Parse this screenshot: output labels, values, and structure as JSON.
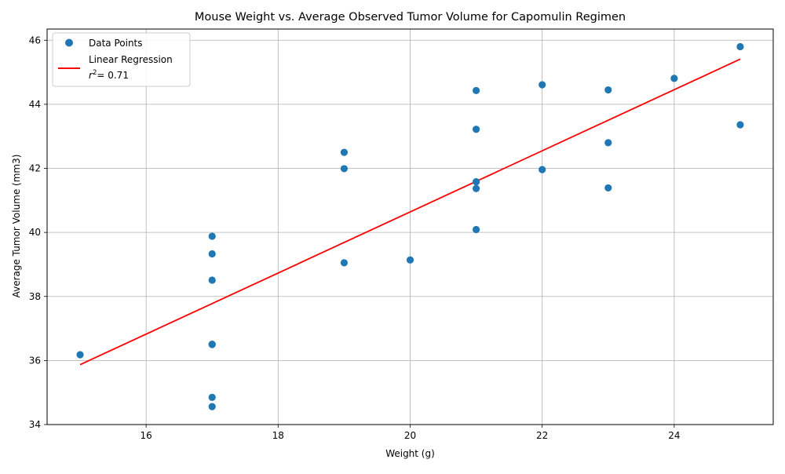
{
  "chart_data": {
    "type": "scatter",
    "title": "Mouse Weight vs. Average Observed Tumor Volume for Capomulin Regimen",
    "xlabel": "Weight (g)",
    "ylabel": "Average Tumor Volume (mm3)",
    "xlim": [
      14.5,
      25.5
    ],
    "ylim": [
      34,
      46.35
    ],
    "xticks": [
      16,
      18,
      20,
      22,
      24
    ],
    "yticks": [
      34,
      36,
      38,
      40,
      42,
      44,
      46
    ],
    "grid": true,
    "legend_position": "top-left",
    "series": [
      {
        "name": "Data Points",
        "kind": "scatter",
        "color": "#1f77b4",
        "points": [
          {
            "x": 15,
            "y": 36.18
          },
          {
            "x": 17,
            "y": 39.88
          },
          {
            "x": 17,
            "y": 39.33
          },
          {
            "x": 17,
            "y": 38.51
          },
          {
            "x": 17,
            "y": 36.51
          },
          {
            "x": 17,
            "y": 36.5
          },
          {
            "x": 17,
            "y": 34.85
          },
          {
            "x": 17,
            "y": 34.56
          },
          {
            "x": 19,
            "y": 42.5
          },
          {
            "x": 19,
            "y": 41.99
          },
          {
            "x": 19,
            "y": 39.05
          },
          {
            "x": 20,
            "y": 39.14
          },
          {
            "x": 21,
            "y": 44.43
          },
          {
            "x": 21,
            "y": 43.22
          },
          {
            "x": 21,
            "y": 41.58
          },
          {
            "x": 21,
            "y": 41.37
          },
          {
            "x": 21,
            "y": 40.09
          },
          {
            "x": 22,
            "y": 44.61
          },
          {
            "x": 22,
            "y": 41.96
          },
          {
            "x": 23,
            "y": 44.45
          },
          {
            "x": 23,
            "y": 42.8
          },
          {
            "x": 23,
            "y": 41.39
          },
          {
            "x": 24,
            "y": 44.81
          },
          {
            "x": 25,
            "y": 45.8
          },
          {
            "x": 25,
            "y": 43.36
          }
        ]
      },
      {
        "name": "Linear Regression",
        "kind": "line",
        "color": "#ff0000",
        "r2_label": "= 0.71",
        "x": [
          15,
          25
        ],
        "y": [
          35.87,
          45.41
        ]
      }
    ]
  }
}
